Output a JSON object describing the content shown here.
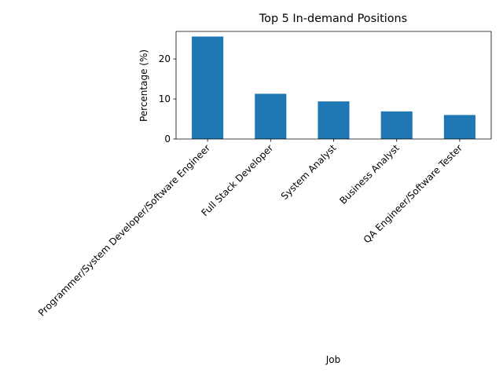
{
  "chart_data": {
    "type": "bar",
    "title": "Top 5 In-demand Positions",
    "xlabel": "Job",
    "ylabel": "Percentage (%)",
    "categories": [
      "Programmer/System Developer/Software Engineer",
      "Full Stack Developer",
      "System Analyst",
      "Business Analyst",
      "QA Engineer/Software Tester"
    ],
    "values": [
      25.6,
      11.3,
      9.4,
      6.9,
      6.0
    ],
    "ylim": [
      0,
      26.88
    ],
    "yticks": [
      0,
      10,
      20
    ],
    "ytick_labels": [
      "0",
      "10",
      "20"
    ],
    "bar_color": "#1f77b4",
    "grid": false,
    "legend": "none"
  }
}
